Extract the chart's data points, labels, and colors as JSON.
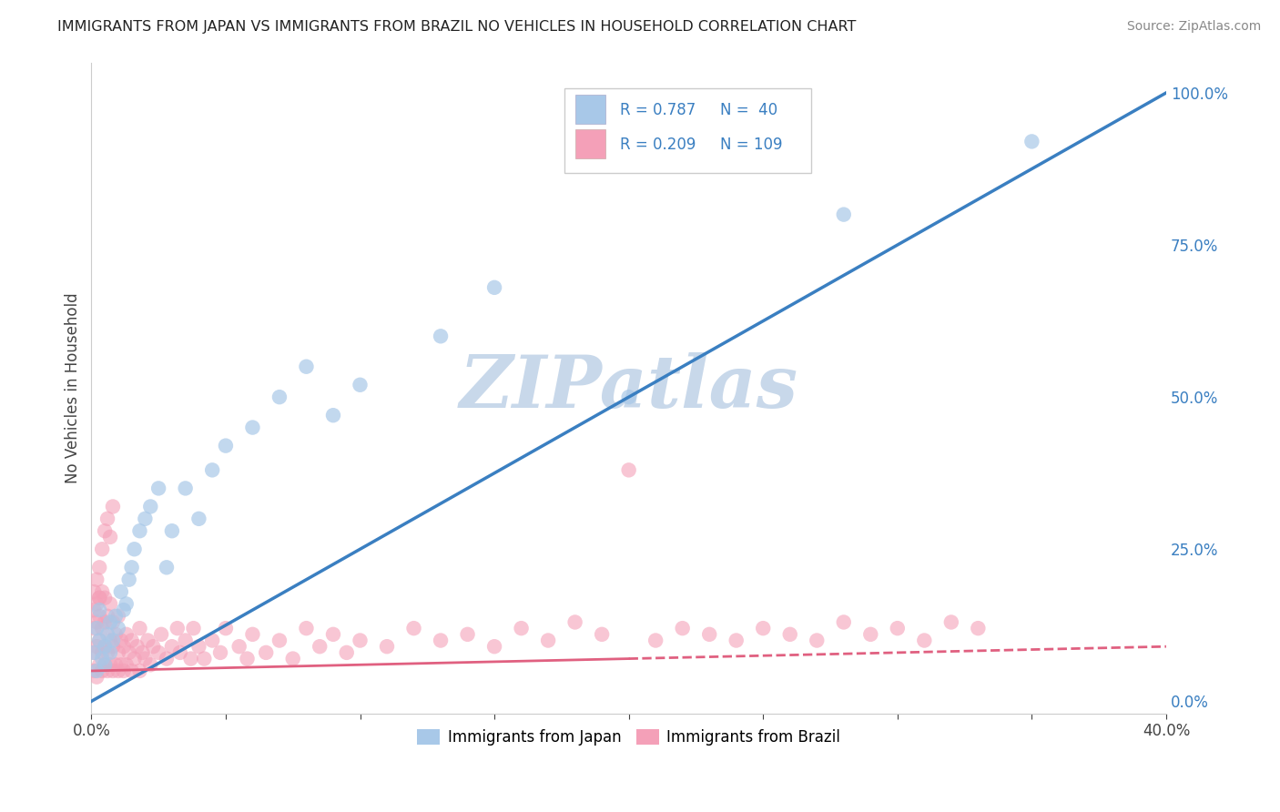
{
  "title": "IMMIGRANTS FROM JAPAN VS IMMIGRANTS FROM BRAZIL NO VEHICLES IN HOUSEHOLD CORRELATION CHART",
  "source": "Source: ZipAtlas.com",
  "ylabel": "No Vehicles in Household",
  "xlim": [
    0.0,
    0.4
  ],
  "ylim": [
    -0.02,
    1.05
  ],
  "xticks": [
    0.0,
    0.05,
    0.1,
    0.15,
    0.2,
    0.25,
    0.3,
    0.35,
    0.4
  ],
  "xtick_labels": [
    "0.0%",
    "",
    "",
    "",
    "",
    "",
    "",
    "",
    "40.0%"
  ],
  "yticks_right": [
    0.0,
    0.25,
    0.5,
    0.75,
    1.0
  ],
  "ytick_labels_right": [
    "0.0%",
    "25.0%",
    "50.0%",
    "75.0%",
    "100.0%"
  ],
  "japan_color": "#a8c8e8",
  "brazil_color": "#f4a0b8",
  "japan_line_color": "#3a7fc1",
  "brazil_line_color": "#e06080",
  "japan_R": 0.787,
  "japan_N": 40,
  "brazil_R": 0.209,
  "brazil_N": 109,
  "watermark": "ZIPatlas",
  "watermark_color": "#c8d8ea",
  "legend_label_japan": "Immigrants from Japan",
  "legend_label_brazil": "Immigrants from Brazil",
  "background_color": "#ffffff",
  "grid_color": "#d8d8d8",
  "japan_scatter_x": [
    0.001,
    0.002,
    0.002,
    0.003,
    0.003,
    0.004,
    0.005,
    0.005,
    0.006,
    0.007,
    0.007,
    0.008,
    0.009,
    0.01,
    0.011,
    0.012,
    0.013,
    0.014,
    0.015,
    0.016,
    0.018,
    0.02,
    0.022,
    0.025,
    0.028,
    0.03,
    0.035,
    0.04,
    0.045,
    0.05,
    0.06,
    0.07,
    0.08,
    0.09,
    0.1,
    0.13,
    0.15,
    0.2,
    0.28,
    0.35
  ],
  "japan_scatter_y": [
    0.08,
    0.05,
    0.12,
    0.1,
    0.15,
    0.07,
    0.06,
    0.09,
    0.11,
    0.08,
    0.13,
    0.1,
    0.14,
    0.12,
    0.18,
    0.15,
    0.16,
    0.2,
    0.22,
    0.25,
    0.28,
    0.3,
    0.32,
    0.35,
    0.22,
    0.28,
    0.35,
    0.3,
    0.38,
    0.42,
    0.45,
    0.5,
    0.55,
    0.47,
    0.52,
    0.6,
    0.68,
    0.5,
    0.8,
    0.92
  ],
  "brazil_scatter_x": [
    0.001,
    0.001,
    0.001,
    0.002,
    0.002,
    0.002,
    0.002,
    0.003,
    0.003,
    0.003,
    0.003,
    0.004,
    0.004,
    0.004,
    0.004,
    0.005,
    0.005,
    0.005,
    0.005,
    0.006,
    0.006,
    0.006,
    0.007,
    0.007,
    0.007,
    0.008,
    0.008,
    0.008,
    0.009,
    0.009,
    0.01,
    0.01,
    0.01,
    0.011,
    0.011,
    0.012,
    0.012,
    0.013,
    0.013,
    0.014,
    0.015,
    0.015,
    0.016,
    0.017,
    0.018,
    0.018,
    0.019,
    0.02,
    0.021,
    0.022,
    0.023,
    0.025,
    0.026,
    0.028,
    0.03,
    0.032,
    0.033,
    0.035,
    0.037,
    0.038,
    0.04,
    0.042,
    0.045,
    0.048,
    0.05,
    0.055,
    0.058,
    0.06,
    0.065,
    0.07,
    0.075,
    0.08,
    0.085,
    0.09,
    0.095,
    0.1,
    0.11,
    0.12,
    0.13,
    0.14,
    0.15,
    0.16,
    0.17,
    0.18,
    0.19,
    0.2,
    0.21,
    0.22,
    0.23,
    0.24,
    0.25,
    0.26,
    0.27,
    0.28,
    0.29,
    0.3,
    0.31,
    0.32,
    0.33,
    0.001,
    0.001,
    0.002,
    0.003,
    0.003,
    0.004,
    0.005,
    0.006,
    0.007,
    0.008
  ],
  "brazil_scatter_y": [
    0.05,
    0.08,
    0.12,
    0.04,
    0.09,
    0.13,
    0.16,
    0.06,
    0.1,
    0.14,
    0.17,
    0.05,
    0.08,
    0.12,
    0.18,
    0.06,
    0.09,
    0.13,
    0.17,
    0.05,
    0.08,
    0.14,
    0.06,
    0.1,
    0.16,
    0.05,
    0.09,
    0.13,
    0.06,
    0.11,
    0.05,
    0.08,
    0.14,
    0.06,
    0.1,
    0.05,
    0.09,
    0.06,
    0.11,
    0.08,
    0.05,
    0.1,
    0.07,
    0.09,
    0.05,
    0.12,
    0.08,
    0.07,
    0.1,
    0.06,
    0.09,
    0.08,
    0.11,
    0.07,
    0.09,
    0.12,
    0.08,
    0.1,
    0.07,
    0.12,
    0.09,
    0.07,
    0.1,
    0.08,
    0.12,
    0.09,
    0.07,
    0.11,
    0.08,
    0.1,
    0.07,
    0.12,
    0.09,
    0.11,
    0.08,
    0.1,
    0.09,
    0.12,
    0.1,
    0.11,
    0.09,
    0.12,
    0.1,
    0.13,
    0.11,
    0.38,
    0.1,
    0.12,
    0.11,
    0.1,
    0.12,
    0.11,
    0.1,
    0.13,
    0.11,
    0.12,
    0.1,
    0.13,
    0.12,
    0.18,
    0.15,
    0.2,
    0.17,
    0.22,
    0.25,
    0.28,
    0.3,
    0.27,
    0.32
  ]
}
